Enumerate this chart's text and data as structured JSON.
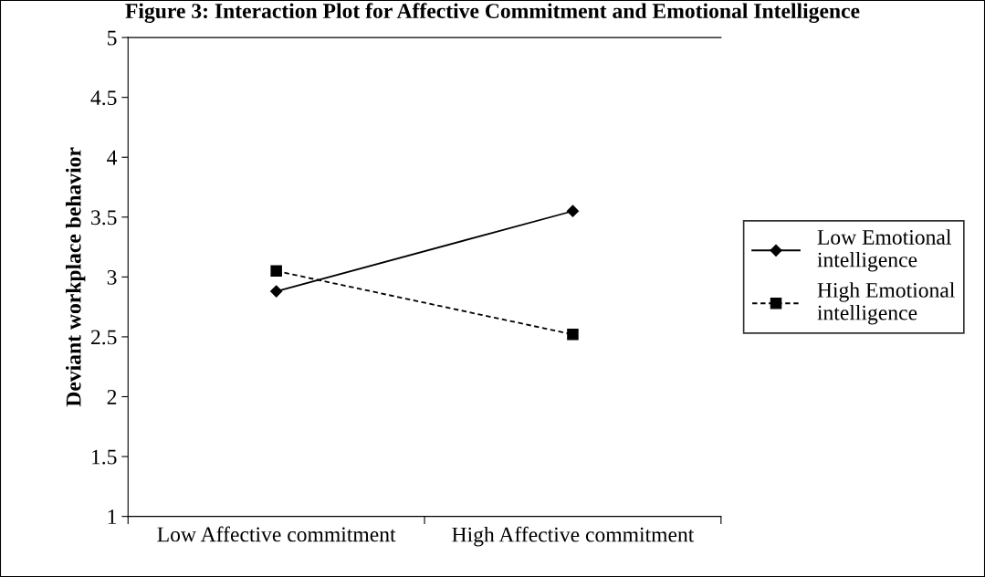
{
  "chart_data": {
    "type": "line",
    "title": "Figure 3: Interaction Plot for Affective Commitment and Emotional Intelligence",
    "ylabel": "Deviant workplace behavior",
    "categories": [
      "Low Affective commitment",
      "High Affective commitment"
    ],
    "series": [
      {
        "name": "Low Emotional\nintelligence",
        "color": "#000000",
        "values": [
          2.88,
          3.55
        ],
        "marker": "diamond",
        "line_style": "solid"
      },
      {
        "name": "High Emotional\nintelligence",
        "color": "#000000",
        "values": [
          3.05,
          2.52
        ],
        "marker": "square",
        "line_style": "dashed"
      }
    ],
    "ylim": [
      1,
      5
    ],
    "yticks": [
      1,
      1.5,
      2,
      2.5,
      3,
      3.5,
      4,
      4.5,
      5
    ],
    "grid": false,
    "legend": "right"
  }
}
